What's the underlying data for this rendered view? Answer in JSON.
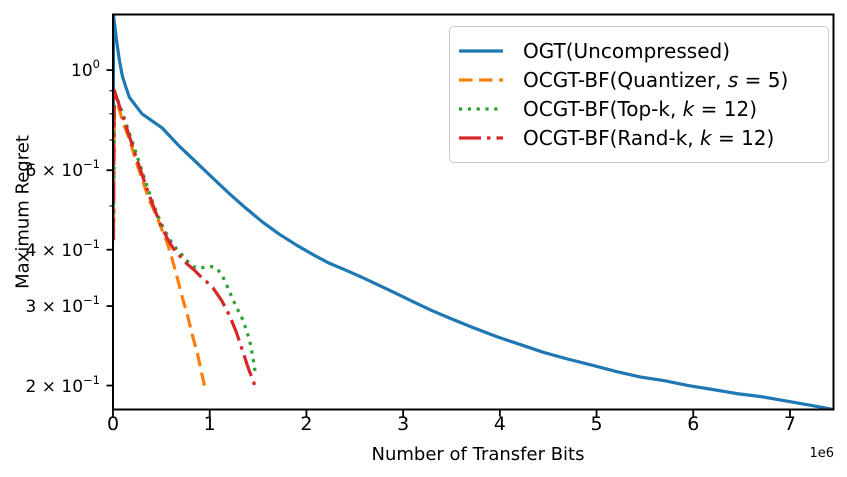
{
  "chart_data": {
    "type": "line",
    "xlabel": "Number of Transfer Bits",
    "ylabel": "Maximum Regret",
    "x_offset_label": "1e6",
    "xlim": [
      0,
      7450000
    ],
    "ylim": [
      0.177,
      1.328
    ],
    "yscale": "log",
    "grid": false,
    "legend_position": "upper right",
    "x_ticks": [
      {
        "value": 0,
        "label": "0"
      },
      {
        "value": 1000000,
        "label": "1"
      },
      {
        "value": 2000000,
        "label": "2"
      },
      {
        "value": 3000000,
        "label": "3"
      },
      {
        "value": 4000000,
        "label": "4"
      },
      {
        "value": 5000000,
        "label": "5"
      },
      {
        "value": 6000000,
        "label": "6"
      },
      {
        "value": 7000000,
        "label": "7"
      }
    ],
    "y_ticks": [
      {
        "value": 1.0,
        "coef": "10",
        "exp": "0"
      },
      {
        "value": 0.6,
        "coef": "6 × 10",
        "exp": "−1"
      },
      {
        "value": 0.4,
        "coef": "4 × 10",
        "exp": "−1"
      },
      {
        "value": 0.3,
        "coef": "3 × 10",
        "exp": "−1"
      },
      {
        "value": 0.2,
        "coef": "2 × 10",
        "exp": "−1"
      }
    ],
    "y_minor_ticks": [
      0.9,
      0.8,
      0.7,
      0.5
    ],
    "series": [
      {
        "name": "OGT(Uncompressed)",
        "color": "#1f77b4",
        "style": "solid",
        "points": [
          [
            2000,
            0.42
          ],
          [
            5000,
            1.325
          ],
          [
            35000,
            1.17
          ],
          [
            66000,
            1.05
          ],
          [
            97000,
            0.97
          ],
          [
            130000,
            0.92
          ],
          [
            170000,
            0.87
          ],
          [
            300000,
            0.8
          ],
          [
            510000,
            0.744
          ],
          [
            680000,
            0.68
          ],
          [
            860000,
            0.625
          ],
          [
            1030000,
            0.577
          ],
          [
            1200000,
            0.533
          ],
          [
            1370000,
            0.495
          ],
          [
            1550000,
            0.46
          ],
          [
            1720000,
            0.433
          ],
          [
            1900000,
            0.409
          ],
          [
            2070000,
            0.39
          ],
          [
            2240000,
            0.373
          ],
          [
            2410000,
            0.36
          ],
          [
            2580000,
            0.347
          ],
          [
            2720000,
            0.336
          ],
          [
            2900000,
            0.322
          ],
          [
            3100000,
            0.307
          ],
          [
            3300000,
            0.293
          ],
          [
            3500000,
            0.281
          ],
          [
            3720000,
            0.269
          ],
          [
            3960000,
            0.257
          ],
          [
            4200000,
            0.247
          ],
          [
            4450000,
            0.237
          ],
          [
            4700000,
            0.229
          ],
          [
            4950000,
            0.222
          ],
          [
            5200000,
            0.215
          ],
          [
            5450000,
            0.209
          ],
          [
            5700000,
            0.205
          ],
          [
            5950000,
            0.2
          ],
          [
            6200000,
            0.196
          ],
          [
            6450000,
            0.192
          ],
          [
            6700000,
            0.189
          ],
          [
            6950000,
            0.185
          ],
          [
            7200000,
            0.181
          ],
          [
            7450000,
            0.177
          ]
        ]
      },
      {
        "name": "OCGT-BF(Quantizer, s = 5)",
        "color": "#ff7f0e",
        "style": "dashed",
        "points": [
          [
            5000,
            0.42
          ],
          [
            15000,
            0.889
          ],
          [
            97000,
            0.774
          ],
          [
            180000,
            0.692
          ],
          [
            242000,
            0.625
          ],
          [
            304000,
            0.57
          ],
          [
            377000,
            0.514
          ],
          [
            449000,
            0.477
          ],
          [
            501000,
            0.446
          ],
          [
            563000,
            0.413
          ],
          [
            615000,
            0.379
          ],
          [
            667000,
            0.345
          ],
          [
            718000,
            0.313
          ],
          [
            770000,
            0.286
          ],
          [
            822000,
            0.258
          ],
          [
            874000,
            0.235
          ],
          [
            915000,
            0.214
          ],
          [
            946000,
            0.2
          ]
        ]
      },
      {
        "name": "OCGT-BF(Top-k, k = 12)",
        "color": "#2ca02c",
        "style": "dotted",
        "points": [
          [
            6000,
            0.42
          ],
          [
            15000,
            0.899
          ],
          [
            118000,
            0.782
          ],
          [
            201000,
            0.692
          ],
          [
            284000,
            0.612
          ],
          [
            366000,
            0.542
          ],
          [
            449000,
            0.484
          ],
          [
            522000,
            0.446
          ],
          [
            594000,
            0.419
          ],
          [
            656000,
            0.402
          ],
          [
            708000,
            0.391
          ],
          [
            770000,
            0.377
          ],
          [
            832000,
            0.367
          ],
          [
            894000,
            0.364
          ],
          [
            956000,
            0.366
          ],
          [
            1019000,
            0.367
          ],
          [
            1070000,
            0.364
          ],
          [
            1122000,
            0.353
          ],
          [
            1174000,
            0.335
          ],
          [
            1226000,
            0.315
          ],
          [
            1277000,
            0.298
          ],
          [
            1329000,
            0.284
          ],
          [
            1370000,
            0.269
          ],
          [
            1412000,
            0.252
          ],
          [
            1443000,
            0.233
          ],
          [
            1463000,
            0.219
          ],
          [
            1474000,
            0.212
          ]
        ]
      },
      {
        "name": "OCGT-BF(Rand-k, k = 12)",
        "color": "#d62728",
        "style": "dashdot",
        "points": [
          [
            4000,
            0.42
          ],
          [
            12000,
            0.903
          ],
          [
            87000,
            0.807
          ],
          [
            170000,
            0.713
          ],
          [
            253000,
            0.628
          ],
          [
            335000,
            0.558
          ],
          [
            418000,
            0.499
          ],
          [
            491000,
            0.455
          ],
          [
            563000,
            0.423
          ],
          [
            625000,
            0.402
          ],
          [
            698000,
            0.386
          ],
          [
            770000,
            0.371
          ],
          [
            843000,
            0.36
          ],
          [
            905000,
            0.349
          ],
          [
            967000,
            0.34
          ],
          [
            1039000,
            0.328
          ],
          [
            1122000,
            0.309
          ],
          [
            1205000,
            0.286
          ],
          [
            1277000,
            0.262
          ],
          [
            1339000,
            0.239
          ],
          [
            1401000,
            0.218
          ],
          [
            1453000,
            0.204
          ],
          [
            1484000,
            0.195
          ]
        ]
      }
    ],
    "legend_items": [
      {
        "pre": "OGT(Uncompressed)",
        "var": "",
        "post": ""
      },
      {
        "pre": "OCGT-BF(Quantizer, ",
        "var": "s",
        "post": " = 5)"
      },
      {
        "pre": "OCGT-BF(Top-k, ",
        "var": "k",
        "post": " = 12)"
      },
      {
        "pre": "OCGT-BF(Rand-k, ",
        "var": "k",
        "post": " = 12)"
      }
    ]
  },
  "colors": {
    "spine": "#000000",
    "legend_border": "#cccccc",
    "text": "#000000"
  }
}
